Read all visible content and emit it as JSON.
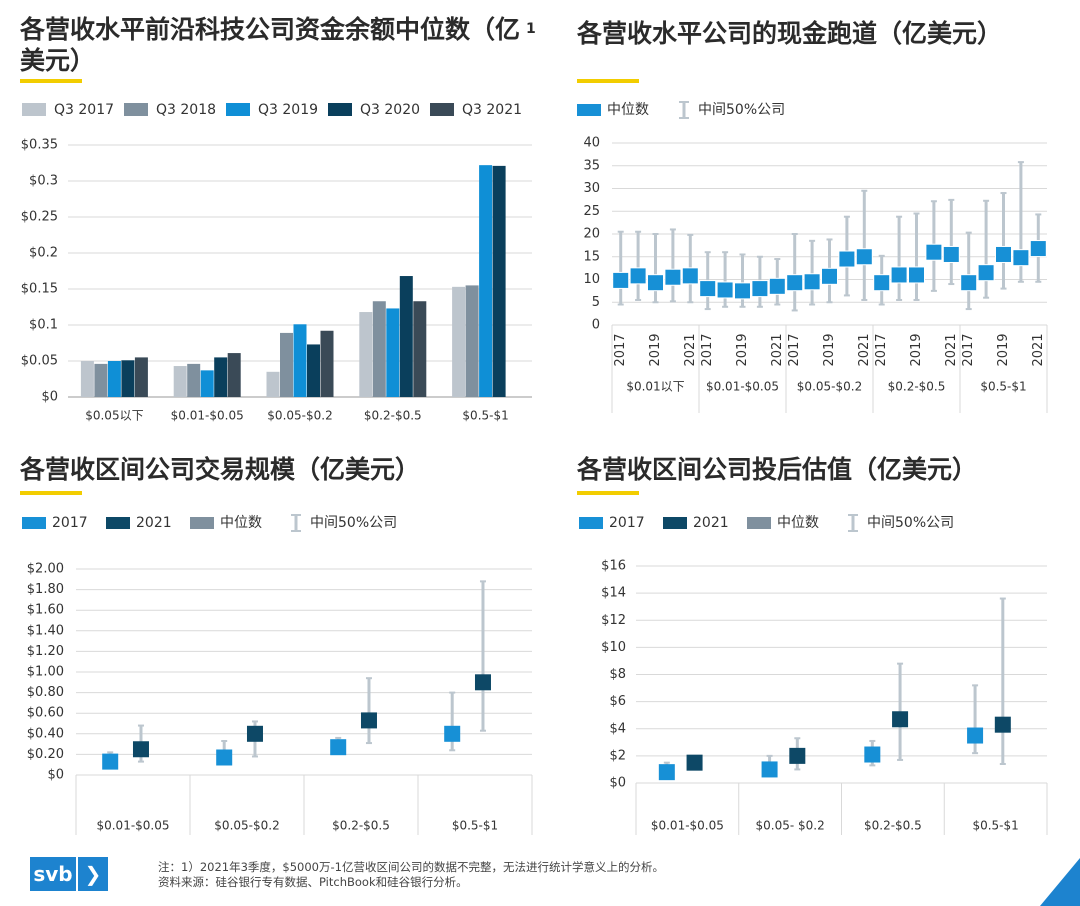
{
  "colors": {
    "c2017": "#bdc5cd",
    "c2018": "#7f909e",
    "c2019": "#0f8fd6",
    "c2020": "#0a3f5c",
    "c2021": "#3a4a57",
    "range": "#bcc6ce",
    "grid": "#d9d9d9",
    "dark": "#0d4866",
    "blue": "#1790d6",
    "grey": "#7f909e"
  },
  "chart_data": [
    {
      "type": "bar",
      "title": "各营收水平前沿科技公司资金余额中位数（亿美元）",
      "footnote_mark": "1",
      "categories": [
        "$0.05以下",
        "$0.01-$0.05",
        "$0.05-$0.2",
        "$0.2-$0.5",
        "$0.5-$1"
      ],
      "series": [
        {
          "name": "Q3 2017",
          "values": [
            0.05,
            0.043,
            0.035,
            0.118,
            0.153
          ]
        },
        {
          "name": "Q3 2018",
          "values": [
            0.046,
            0.046,
            0.089,
            0.133,
            0.155
          ]
        },
        {
          "name": "Q3 2019",
          "values": [
            0.05,
            0.037,
            0.101,
            0.123,
            0.322
          ]
        },
        {
          "name": "Q3 2020",
          "values": [
            0.051,
            0.055,
            0.073,
            0.168,
            0.321
          ]
        },
        {
          "name": "Q3 2021",
          "values": [
            0.055,
            0.061,
            0.092,
            0.133,
            0.0
          ]
        }
      ],
      "yticks": [
        "$0",
        "$0.05",
        "$0.1",
        "$0.15",
        "$0.2",
        "$0.25",
        "$0.3",
        "$0.35"
      ],
      "ylim": [
        0,
        0.35
      ]
    },
    {
      "type": "scatter",
      "title": "各营收水平公司的现金跑道（亿美元）",
      "legend": [
        "中位数",
        "中间50%公司"
      ],
      "groups": [
        "$0.01以下",
        "$0.01-$0.05",
        "$0.05-$0.2",
        "$0.2-$0.5",
        "$0.5-$1"
      ],
      "year_labels": [
        "2017",
        "2019",
        "2021"
      ],
      "points": [
        [
          [
            9.8,
            4.5,
            20.5
          ],
          [
            10.8,
            5.5,
            20.5
          ],
          [
            9.3,
            5.0,
            20.0
          ],
          [
            10.5,
            5.2,
            21.0
          ],
          [
            10.8,
            5.0,
            19.8
          ]
        ],
        [
          [
            8.0,
            3.5,
            16.0
          ],
          [
            7.7,
            4.0,
            16.0
          ],
          [
            7.5,
            4.0,
            15.5
          ],
          [
            8.0,
            4.0,
            15.0
          ],
          [
            8.5,
            4.5,
            14.5
          ]
        ],
        [
          [
            9.3,
            3.2,
            20.0
          ],
          [
            9.5,
            4.5,
            18.5
          ],
          [
            10.7,
            5.0,
            18.8
          ],
          [
            14.5,
            6.5,
            23.8
          ],
          [
            15.0,
            5.5,
            29.5
          ]
        ],
        [
          [
            9.3,
            4.5,
            15.2
          ],
          [
            11.0,
            5.5,
            23.8
          ],
          [
            11.0,
            5.5,
            24.5
          ],
          [
            16.0,
            7.5,
            27.2
          ],
          [
            15.5,
            9.0,
            27.5
          ]
        ],
        [
          [
            9.3,
            3.5,
            20.3
          ],
          [
            11.5,
            6.0,
            27.3
          ],
          [
            15.5,
            8.0,
            29.0
          ],
          [
            14.8,
            9.5,
            35.8
          ],
          [
            16.8,
            9.5,
            24.3
          ]
        ]
      ],
      "yticks": [
        "0",
        "5",
        "10",
        "15",
        "20",
        "25",
        "30",
        "35",
        "40"
      ],
      "ylim": [
        0,
        40
      ]
    },
    {
      "type": "scatter",
      "title": "各营收区间公司交易规模（亿美元）",
      "legend": [
        "2017",
        "2021",
        "中位数",
        "中间50%公司"
      ],
      "groups": [
        "$0.01-$0.05",
        "$0.05-$0.2",
        "$0.2-$0.5",
        "$0.5-$1"
      ],
      "points_2017": [
        [
          0.13,
          0.1,
          0.22
        ],
        [
          0.17,
          0.12,
          0.33
        ],
        [
          0.27,
          0.22,
          0.36
        ],
        [
          0.4,
          0.24,
          0.8
        ]
      ],
      "points_2021": [
        [
          0.25,
          0.13,
          0.48
        ],
        [
          0.4,
          0.18,
          0.52
        ],
        [
          0.53,
          0.31,
          0.94
        ],
        [
          0.9,
          0.43,
          1.88
        ]
      ],
      "yticks": [
        "$0",
        "$0.20",
        "$0.40",
        "$0.60",
        "$0.80",
        "$1.00",
        "$1.20",
        "$1.40",
        "$1.60",
        "$1.80",
        "$2.00"
      ],
      "ylim": [
        0,
        2.0
      ]
    },
    {
      "type": "scatter",
      "title": "各营收区间公司投后估值（亿美元）",
      "legend": [
        "2017",
        "2021",
        "中位数",
        "中间50%公司"
      ],
      "groups": [
        "$0.01-$0.05",
        "$0.05- $0.2",
        "$0.2-$0.5",
        "$0.5-$1"
      ],
      "points_2017": [
        [
          0.8,
          0.5,
          1.5
        ],
        [
          1.0,
          0.5,
          2.0
        ],
        [
          2.1,
          1.3,
          3.1
        ],
        [
          3.5,
          2.2,
          7.2
        ]
      ],
      "points_2021": [
        [
          1.5,
          1.2,
          1.9
        ],
        [
          2.0,
          1.0,
          3.3
        ],
        [
          4.7,
          1.7,
          8.8
        ],
        [
          4.3,
          1.4,
          13.6
        ]
      ],
      "yticks": [
        "$0",
        "$2",
        "$4",
        "$6",
        "$8",
        "$10",
        "$12",
        "$14",
        "$16"
      ],
      "ylim": [
        0,
        16
      ]
    }
  ],
  "footer": {
    "logo_text": "svb",
    "logo_arrow": "❯",
    "note_line1": "注：1）2021年3季度，$5000万-1亿营收区间公司的数据不完整，无法进行统计学意义上的分析。",
    "note_line2": "资料来源：硅谷银行专有数据、PitchBook和硅谷银行分析。"
  }
}
